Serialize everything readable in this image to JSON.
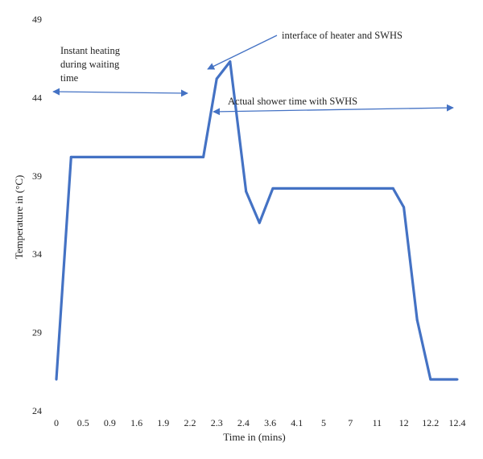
{
  "chart_data": {
    "type": "line",
    "xlabel": "Time in (mins)",
    "ylabel": "Temperature in (°C)",
    "ylim": [
      24,
      49
    ],
    "yticks": [
      "24",
      "29",
      "34",
      "39",
      "44",
      "49"
    ],
    "categories": [
      "0",
      "0.5",
      "0.9",
      "1.6",
      "1.9",
      "2.2",
      "2.3",
      "2.4",
      "3.6",
      "4.1",
      "5",
      "7",
      "11",
      "12",
      "12.2",
      "12.4"
    ],
    "grid": false,
    "legend": "none",
    "color": "#4472C4",
    "series": [
      {
        "points": [
          {
            "x": 0,
            "y": 26
          },
          {
            "x": 0.55,
            "y": 40.2
          },
          {
            "x": 5.5,
            "y": 40.2
          },
          {
            "x": 6.0,
            "y": 45.2
          },
          {
            "x": 6.5,
            "y": 46.3
          },
          {
            "x": 7.1,
            "y": 38.0
          },
          {
            "x": 7.6,
            "y": 36.0
          },
          {
            "x": 8.1,
            "y": 38.2
          },
          {
            "x": 12.6,
            "y": 38.2
          },
          {
            "x": 13.0,
            "y": 37.0
          },
          {
            "x": 13.5,
            "y": 29.8
          },
          {
            "x": 14.0,
            "y": 26.0
          },
          {
            "x": 15.0,
            "y": 26.0
          }
        ]
      }
    ],
    "annotations": [
      {
        "lines": [
          "Instant heating",
          "during waiting",
          "time"
        ]
      },
      {
        "lines": [
          "interface of heater and SWHS"
        ]
      },
      {
        "lines": [
          "Actual shower time with SWHS"
        ]
      }
    ]
  }
}
